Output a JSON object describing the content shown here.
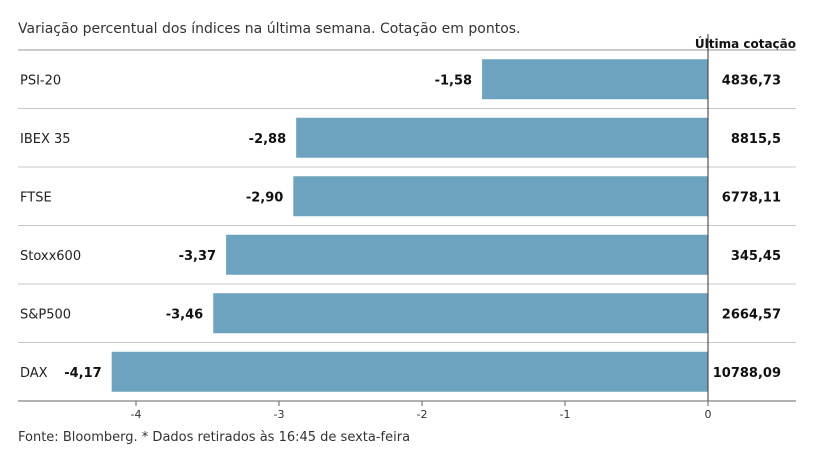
{
  "chart_data": {
    "type": "bar",
    "orientation": "horizontal",
    "title": "Variação percentual dos índices na última semana. Cotação em pontos.",
    "price_header": "Última cotação",
    "categories": [
      "PSI-20",
      "IBEX 35",
      "FTSE",
      "Stoxx600",
      "S&P500",
      "DAX"
    ],
    "values": [
      -1.58,
      -2.88,
      -2.9,
      -3.37,
      -3.46,
      -4.17
    ],
    "value_labels": [
      "-1,58",
      "-2,88",
      "-2,90",
      "-3,37",
      "-3,46",
      "-4,17"
    ],
    "prices": [
      "4836,73",
      "8815,5",
      "6778,11",
      "345,45",
      "2664,57",
      "10788,09"
    ],
    "xlim": [
      -4.5,
      0
    ],
    "xticks": [
      -4,
      -3,
      -2,
      -1,
      0
    ],
    "xtick_labels": [
      "-4",
      "-3",
      "-2",
      "-1",
      "0"
    ],
    "bar_color": "#6ea3bf",
    "grid": false,
    "source": "Fonte: Bloomberg.  * Dados retirados às 16:45 de sexta-feira"
  }
}
